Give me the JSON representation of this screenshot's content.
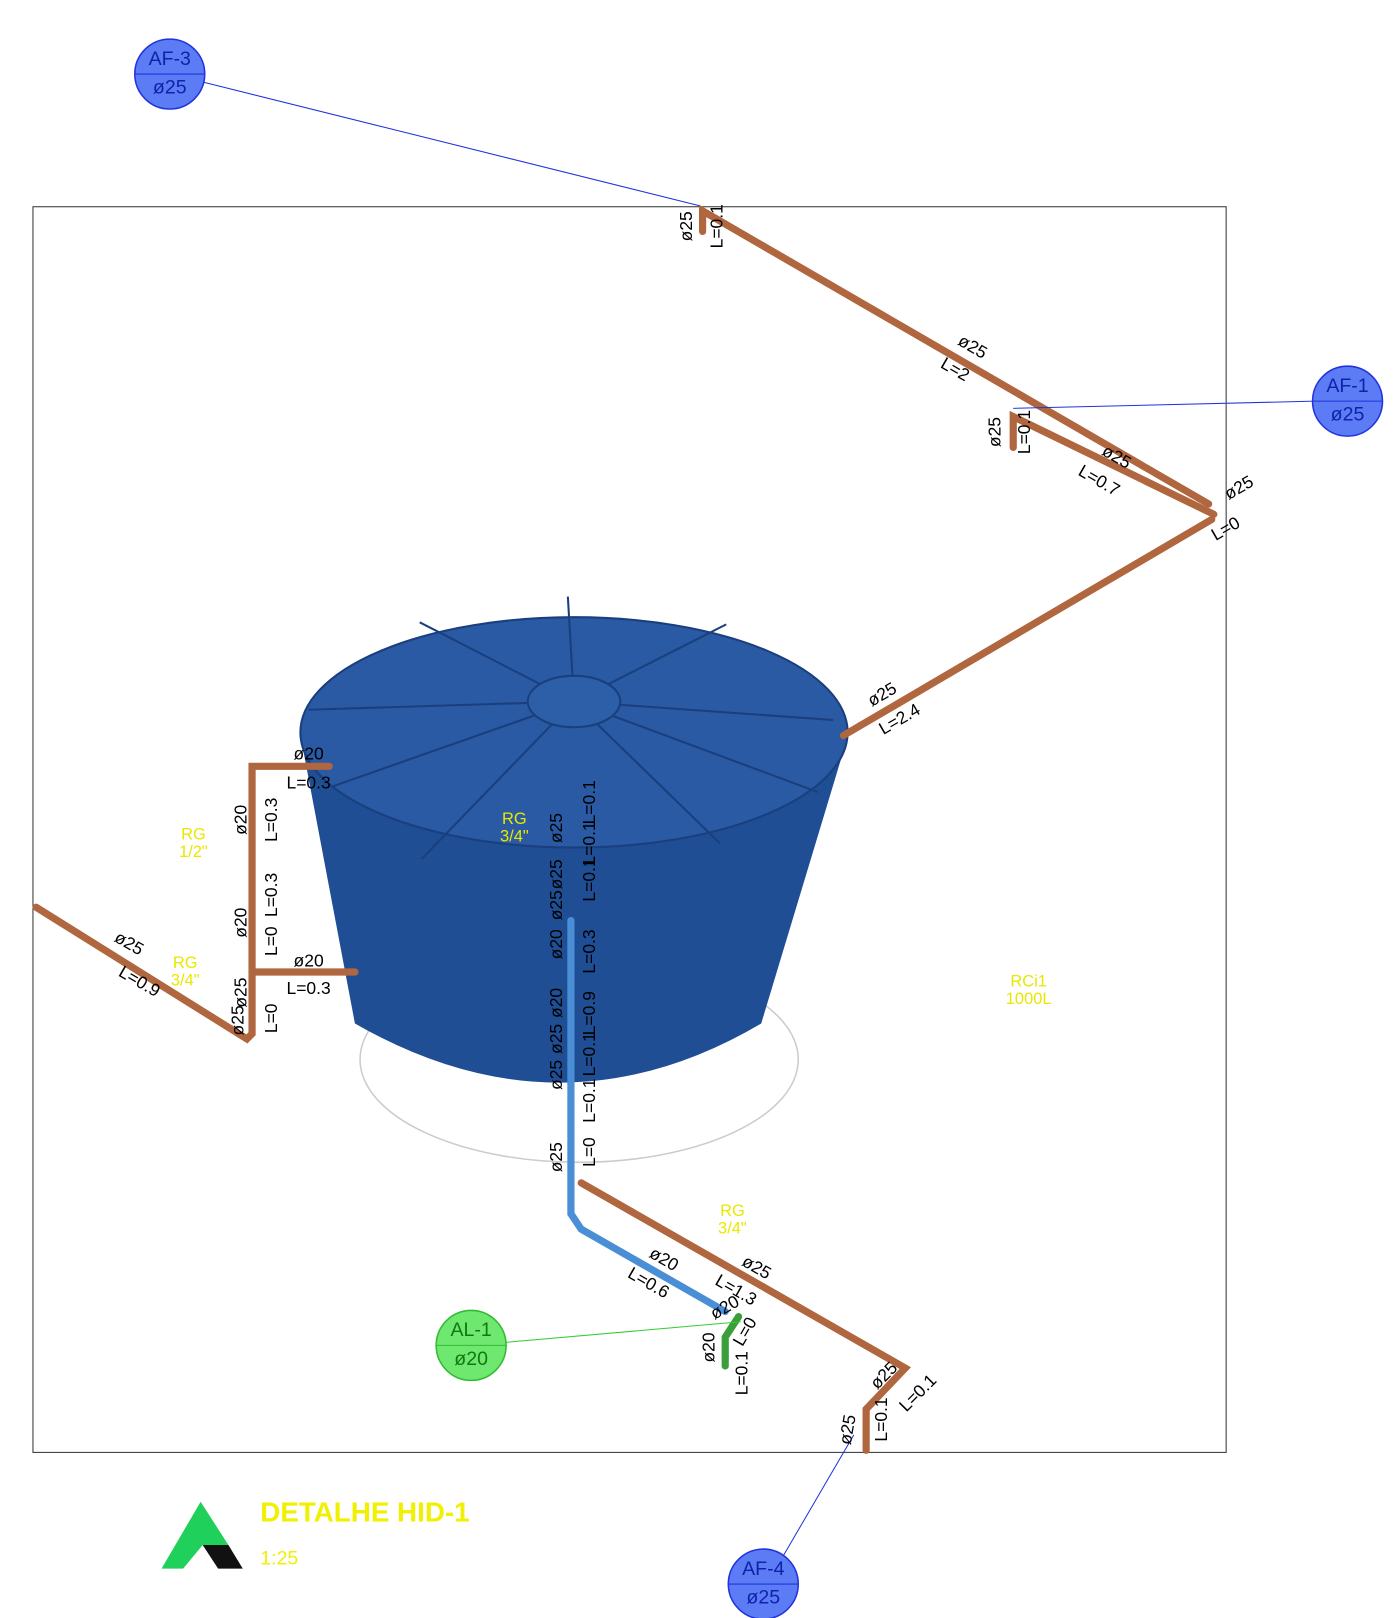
{
  "tags": [
    {
      "name": "AF-3",
      "diameter": "ø25"
    },
    {
      "name": "AF-1",
      "diameter": "ø25"
    },
    {
      "name": "AL-1",
      "diameter": "ø20"
    },
    {
      "name": "AF-4",
      "diameter": "ø25"
    }
  ],
  "pipe_labels": [
    "ø25",
    "L=0.1",
    "ø25",
    "L=2",
    "ø25",
    "L=0.1",
    "ø25",
    "L=0.7",
    "ø25",
    "L=0",
    "ø25",
    "L=2.4",
    "ø20",
    "L=0.3",
    "ø20",
    "L=0.3",
    "ø20",
    "L=0.3",
    "L=0",
    "ø20",
    "L=0.3",
    "ø25",
    "L=0.9",
    "ø25",
    "ø25",
    "L=0",
    "ø25",
    "ø25",
    "ø25",
    "ø20",
    "ø20",
    "ø25",
    "ø25",
    "ø25",
    "L=0.1",
    "L=0.1",
    "L=0.1",
    "L=0.3",
    "L=0.9",
    "L=0.1",
    "L=0.1",
    "L=0",
    "ø20",
    "L=0.6",
    "ø25",
    "L=1.3",
    "ø20",
    "L=0",
    "ø20",
    "L=0.1",
    "ø25",
    "L=0.1",
    "ø25",
    "L=0.1"
  ],
  "fitting_labels": [
    {
      "type": "RG",
      "size": "1/2\""
    },
    {
      "type": "RG",
      "size": "3/4\""
    },
    {
      "type": "RG",
      "size": "3/4\""
    },
    {
      "type": "RCi1",
      "size": "1000L"
    },
    {
      "type": "RG",
      "size": "3/4\""
    }
  ],
  "footer": {
    "title": "DETALHE HID-1",
    "scale": "1:25"
  }
}
